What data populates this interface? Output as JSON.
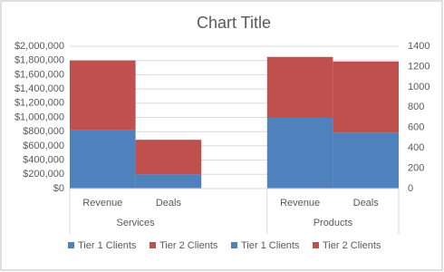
{
  "chart_data": {
    "type": "bar",
    "stacked": true,
    "title": "Chart Title",
    "groups": [
      {
        "name": "Services",
        "categories": [
          "Revenue",
          "Deals",
          null
        ]
      },
      {
        "name": "Products",
        "categories": [
          "Revenue",
          "Deals"
        ]
      }
    ],
    "series": [
      {
        "name": "Tier 1 Clients",
        "color": "#4f81bd",
        "axis": "y",
        "values": [
          820000,
          null,
          null,
          1000000,
          null
        ]
      },
      {
        "name": "Tier 2 Clients",
        "color": "#c0504d",
        "axis": "y",
        "values": [
          980000,
          null,
          null,
          850000,
          null
        ]
      },
      {
        "name": "Tier 1 Clients",
        "color": "#4f81bd",
        "axis": "y2",
        "values": [
          null,
          140,
          null,
          null,
          550
        ]
      },
      {
        "name": "Tier 2 Clients",
        "color": "#c0504d",
        "axis": "y2",
        "values": [
          null,
          340,
          null,
          null,
          700
        ]
      }
    ],
    "ylim": [
      0,
      2000000
    ],
    "yticks": [
      {
        "value": 0,
        "label": "$0"
      },
      {
        "value": 200000,
        "label": "$200,000"
      },
      {
        "value": 400000,
        "label": "$400,000"
      },
      {
        "value": 600000,
        "label": "$600,000"
      },
      {
        "value": 800000,
        "label": "$800,000"
      },
      {
        "value": 1000000,
        "label": "$1,000,000"
      },
      {
        "value": 1200000,
        "label": "$1,200,000"
      },
      {
        "value": 1400000,
        "label": "$1,400,000"
      },
      {
        "value": 1600000,
        "label": "$1,600,000"
      },
      {
        "value": 1800000,
        "label": "$1,800,000"
      },
      {
        "value": 2000000,
        "label": "$2,000,000"
      }
    ],
    "y2lim": [
      0,
      1400
    ],
    "y2ticks": [
      0,
      200,
      400,
      600,
      800,
      1000,
      1200,
      1400
    ],
    "grid": true,
    "legend": "bottom"
  }
}
